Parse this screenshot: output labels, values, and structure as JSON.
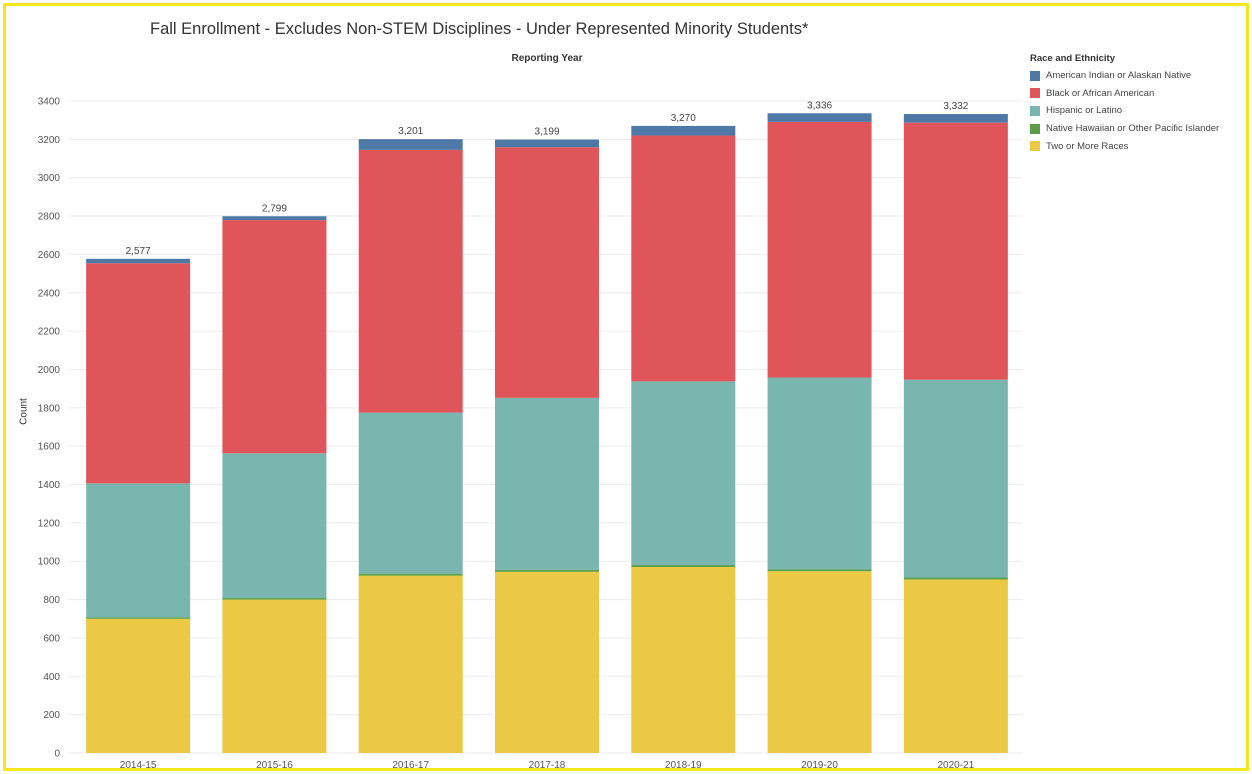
{
  "chart_data": {
    "type": "bar",
    "stacked": true,
    "title": "Fall Enrollment - Excludes Non-STEM Disciplines - Under Represented Minority Students*",
    "subtitle": "Reporting Year",
    "xlabel": "",
    "ylabel": "Count",
    "ylim": [
      0,
      3400
    ],
    "yticks": [
      0,
      200,
      400,
      600,
      800,
      1000,
      1200,
      1400,
      1600,
      1800,
      2000,
      2200,
      2400,
      2600,
      2800,
      3000,
      3200,
      3400
    ],
    "grid": true,
    "legend_title": "Race and Ethnicity",
    "legend_position": "right",
    "categories": [
      "2014-15",
      "2015-16",
      "2016-17",
      "2017-18",
      "2018-19",
      "2019-20",
      "2020-21"
    ],
    "totals_labels": [
      "2,577",
      "2,799",
      "3,201",
      "3,199",
      "3,270",
      "3,336",
      "3,332"
    ],
    "series": [
      {
        "name": "Two or More Races",
        "color": "#ebc944",
        "values": [
          700,
          800,
          925,
          945,
          970,
          948,
          905
        ]
      },
      {
        "name": "Native Hawaiian or Other Pacific Islander",
        "color": "#5a9e4a",
        "values": [
          8,
          8,
          10,
          10,
          10,
          10,
          10
        ]
      },
      {
        "name": "Hispanic or Latino",
        "color": "#79b6b0",
        "values": [
          698,
          755,
          840,
          897,
          958,
          1000,
          1032
        ]
      },
      {
        "name": "Black or African American",
        "color": "#e05559",
        "values": [
          1148,
          1216,
          1370,
          1307,
          1282,
          1333,
          1340
        ]
      },
      {
        "name": "American Indian or Alaskan Native",
        "color": "#4e79a7",
        "values": [
          23,
          20,
          56,
          40,
          50,
          45,
          45
        ]
      }
    ],
    "legend_order": [
      "American Indian or Alaskan Native",
      "Black or African American",
      "Hispanic or Latino",
      "Native Hawaiian or Other Pacific Islander",
      "Two or More Races"
    ]
  }
}
